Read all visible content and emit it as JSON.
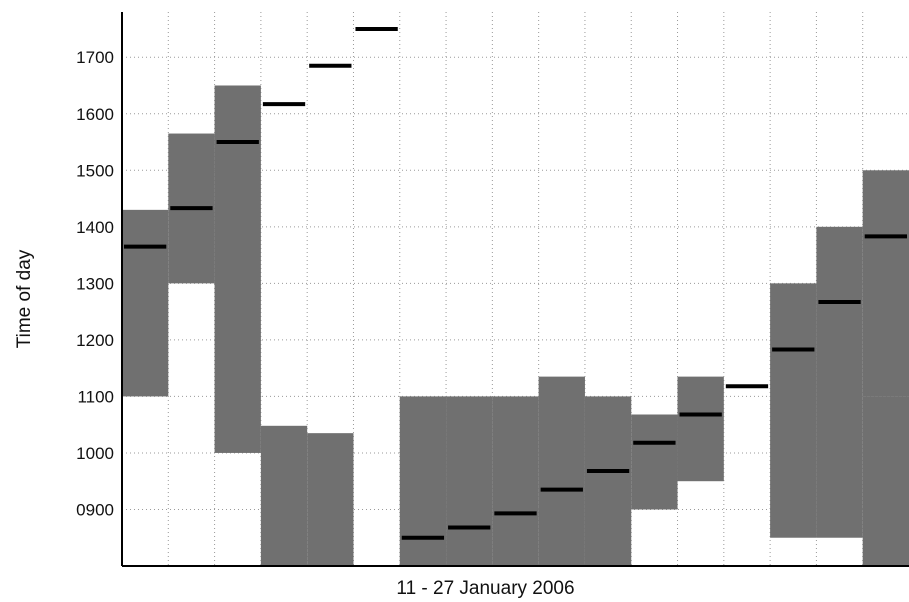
{
  "chart_data": {
    "type": "bar",
    "title": "",
    "xlabel": "11 - 27 January 2006",
    "ylabel": "Time of day",
    "ylim": [
      800,
      1780
    ],
    "yticks": [
      "0900",
      "1000",
      "1100",
      "1200",
      "1300",
      "1400",
      "1500",
      "1600",
      "1700"
    ],
    "ytick_values": [
      900,
      1000,
      1100,
      1200,
      1300,
      1400,
      1500,
      1600,
      1700
    ],
    "grid": true,
    "days": [
      11,
      12,
      13,
      14,
      15,
      16,
      17,
      18,
      19,
      20,
      21,
      22,
      23,
      24,
      25,
      26,
      27
    ],
    "ranges": [
      {
        "day": 11,
        "low": 1100,
        "high": 1430
      },
      {
        "day": 12,
        "low": 1300,
        "high": 1565
      },
      {
        "day": 13,
        "low": 1000,
        "high": 1650
      },
      {
        "day": 14,
        "low": 800,
        "high": 1048
      },
      {
        "day": 15,
        "low": 800,
        "high": 1035
      },
      {
        "day": 16,
        "low": null,
        "high": null
      },
      {
        "day": 17,
        "low": 800,
        "high": 1100
      },
      {
        "day": 18,
        "low": 800,
        "high": 1100
      },
      {
        "day": 19,
        "low": 800,
        "high": 1100
      },
      {
        "day": 20,
        "low": 800,
        "high": 1135
      },
      {
        "day": 21,
        "low": 800,
        "high": 1100
      },
      {
        "day": 22,
        "low": 900,
        "high": 1068
      },
      {
        "day": 23,
        "low": 950,
        "high": 1135
      },
      {
        "day": 24,
        "low": null,
        "high": null
      },
      {
        "day": 25,
        "low": 850,
        "high": 1300
      },
      {
        "day": 26,
        "low": 850,
        "high": 1400
      },
      {
        "day": 27,
        "low": 800,
        "high": 1100
      },
      {
        "day": 27,
        "low": 1100,
        "high": 1500
      }
    ],
    "markers": [
      1365,
      1433,
      1550,
      1617,
      1685,
      1750,
      850,
      868,
      893,
      935,
      968,
      1018,
      1068,
      1118,
      1183,
      1267,
      1383
    ],
    "colors": {
      "range": "#707070",
      "marker": "#000000",
      "grid": "#9a9a9a",
      "axis": "#000000"
    }
  }
}
